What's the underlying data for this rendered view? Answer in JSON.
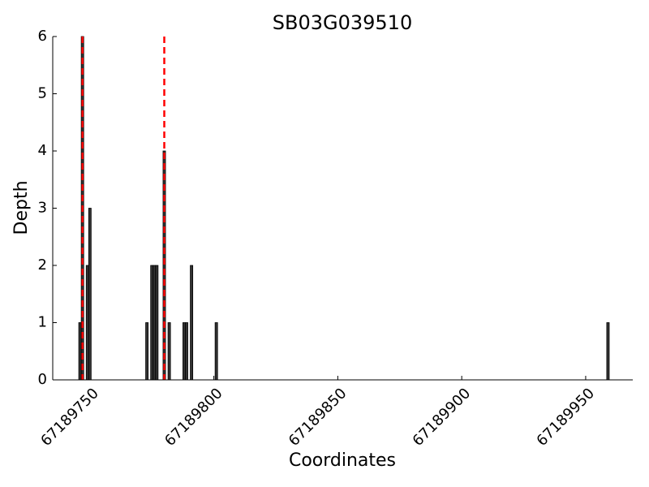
{
  "chart_data": {
    "type": "bar",
    "title": "SB03G039510",
    "x_label": "Coordinates",
    "y_label": "Depth",
    "x": [
      67189746,
      67189747,
      67189749,
      67189750,
      67189773,
      67189775,
      67189776,
      67189777,
      67189780,
      67189782,
      67189788,
      67189789,
      67189791,
      67189801,
      67189959
    ],
    "values": [
      1,
      6,
      2,
      3,
      1,
      2,
      2,
      2,
      4,
      1,
      1,
      1,
      2,
      1,
      1
    ],
    "color": "#333333",
    "markers": [
      67189747,
      67189780
    ],
    "marker_color": "#ff0000",
    "xlim": [
      67189735,
      67189969
    ],
    "xticks": [
      67189750,
      67189800,
      67189850,
      67189900,
      67189950
    ],
    "ylim": [
      0,
      6
    ],
    "yticks": [
      0,
      1,
      2,
      3,
      4,
      5,
      6
    ]
  }
}
